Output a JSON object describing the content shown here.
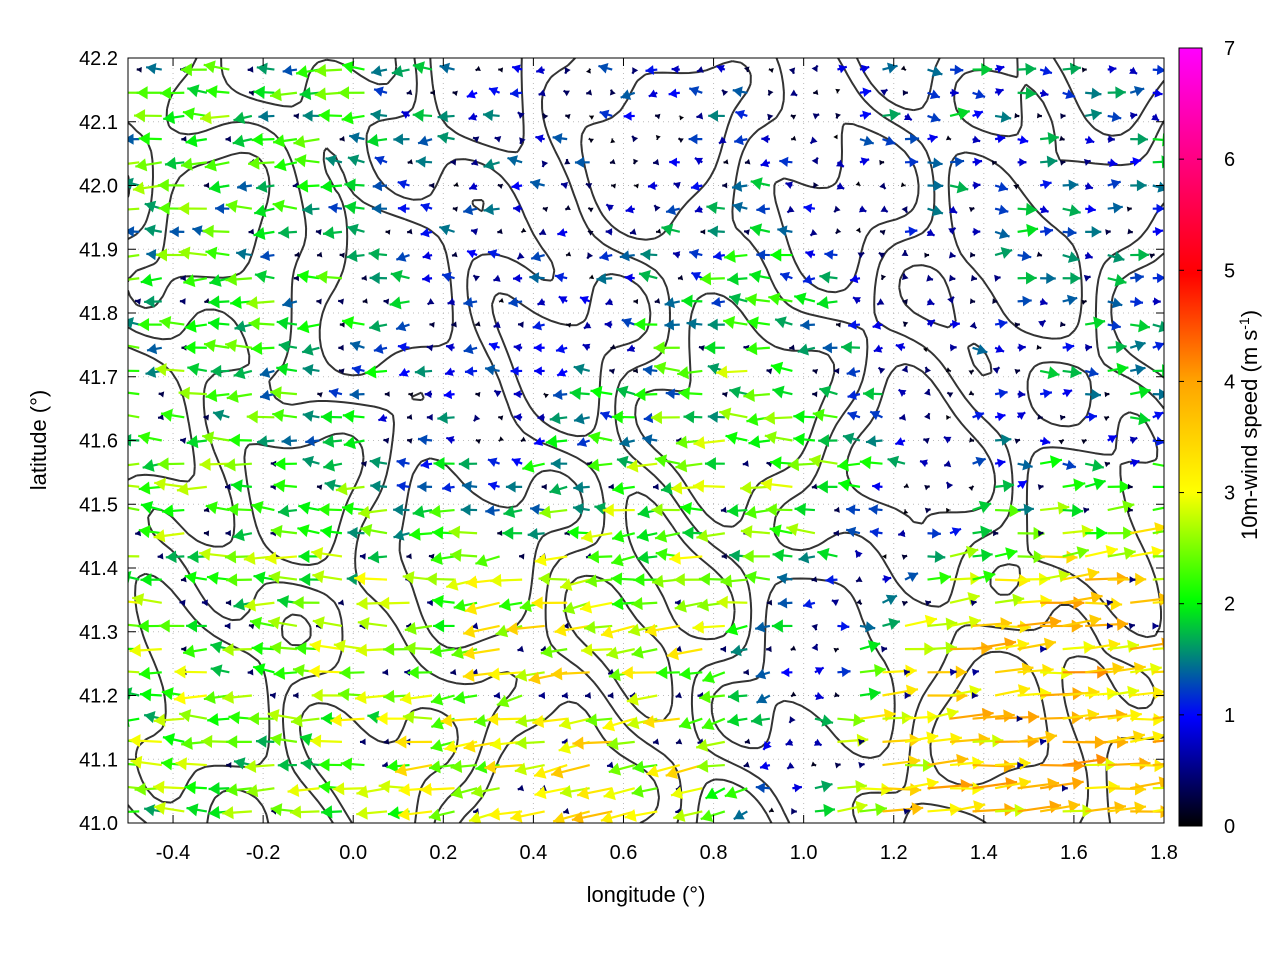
{
  "chart_data": {
    "type": "vector-field",
    "title": "",
    "xlabel": "longitude (°)",
    "ylabel": "latitude (°)",
    "xlim": [
      -0.5,
      1.8
    ],
    "ylim": [
      41.0,
      42.2
    ],
    "x_ticks": [
      "-0.4",
      "-0.2",
      "0.0",
      "0.2",
      "0.4",
      "0.6",
      "0.8",
      "1.0",
      "1.2",
      "1.4",
      "1.6",
      "1.8"
    ],
    "x_tick_values": [
      -0.4,
      -0.2,
      0.0,
      0.2,
      0.4,
      0.6,
      0.8,
      1.0,
      1.2,
      1.4,
      1.6,
      1.8
    ],
    "y_ticks": [
      "41.0",
      "41.1",
      "41.2",
      "41.3",
      "41.4",
      "41.5",
      "41.6",
      "41.7",
      "41.8",
      "41.9",
      "42.0",
      "42.1",
      "42.2"
    ],
    "y_tick_values": [
      41.0,
      41.1,
      41.2,
      41.3,
      41.4,
      41.5,
      41.6,
      41.7,
      41.8,
      41.9,
      42.0,
      42.1,
      42.2
    ],
    "grid": true,
    "colorbar": {
      "label_prefix": "10m-wind speed (m s",
      "label_sup": "-1",
      "label_suffix": ")",
      "range": [
        0,
        7
      ],
      "ticks": [
        "0",
        "1",
        "2",
        "3",
        "4",
        "5",
        "6",
        "7"
      ],
      "tick_values": [
        0,
        1,
        2,
        3,
        4,
        5,
        6,
        7
      ],
      "palette": [
        "#000000",
        "#0000ff",
        "#00ff00",
        "#ffff00",
        "#ffa500",
        "#ff0000",
        "#ff00ff"
      ]
    },
    "contour_color": "#333333",
    "wind_field_approx": {
      "description_by_region": [
        {
          "lon": [
            -0.5,
            0.2
          ],
          "lat": [
            41.5,
            42.2
          ],
          "u_ms": -2.0,
          "v_ms": 0.0
        },
        {
          "lon": [
            -0.5,
            0.3
          ],
          "lat": [
            41.0,
            41.5
          ],
          "u_ms": -2.3,
          "v_ms": 0.1
        },
        {
          "lon": [
            0.2,
            0.6
          ],
          "lat": [
            41.6,
            42.0
          ],
          "u_ms": -0.5,
          "v_ms": 0.0
        },
        {
          "lon": [
            0.4,
            1.3
          ],
          "lat": [
            41.4,
            41.8
          ],
          "u_ms": -2.5,
          "v_ms": 0.1
        },
        {
          "lon": [
            1.3,
            1.8
          ],
          "lat": [
            41.5,
            42.2
          ],
          "u_ms": 1.2,
          "v_ms": 0.0
        },
        {
          "lon": [
            1.1,
            1.8
          ],
          "lat": [
            41.0,
            41.3
          ],
          "u_ms": 3.5,
          "v_ms": 0.3
        },
        {
          "lon": [
            0.1,
            0.9
          ],
          "lat": [
            41.0,
            41.3
          ],
          "u_ms": -3.0,
          "v_ms": -0.6
        }
      ]
    }
  }
}
